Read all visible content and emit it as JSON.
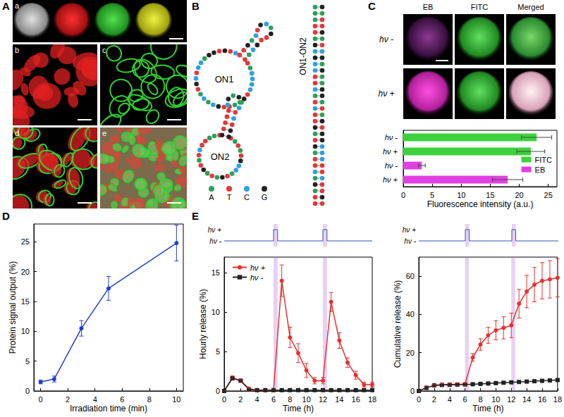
{
  "panels": {
    "A": {
      "label": "A",
      "sub_labels": [
        "a",
        "b",
        "c",
        "d",
        "e"
      ]
    },
    "B": {
      "label": "B",
      "strands": [
        "ON1",
        "ON2"
      ],
      "duplex": "ON1-ON2",
      "bases": [
        {
          "base": "A",
          "color": "#2ca05a"
        },
        {
          "base": "T",
          "color": "#e03a3a"
        },
        {
          "base": "C",
          "color": "#30a0e0"
        },
        {
          "base": "G",
          "color": "#222222"
        }
      ]
    },
    "C": {
      "label": "C",
      "columns": [
        "EB",
        "FITC",
        "Merged"
      ],
      "rows": [
        "hν -",
        "hν +"
      ]
    },
    "D": {
      "label": "D"
    },
    "E": {
      "label": "E",
      "light_levels": [
        "hν -",
        "hν +"
      ],
      "light_on": [
        [
          6,
          6.5
        ],
        [
          12,
          12.5
        ]
      ]
    }
  },
  "chart_data": [
    {
      "type": "bar",
      "orientation": "horizontal",
      "categories": [
        "hν -",
        "hν +",
        "hν -",
        "hν +"
      ],
      "series": [
        {
          "name": "FITC",
          "color": "#3dd13d",
          "values": [
            23,
            22,
            null,
            null
          ],
          "errors": [
            2.6,
            2.4,
            null,
            null
          ]
        },
        {
          "name": "EB",
          "color": "#e23fe2",
          "values": [
            null,
            null,
            3.2,
            18
          ],
          "errors": [
            null,
            null,
            0.6,
            2.6
          ]
        }
      ],
      "xlabel": "Fluorescence intensity (a.u.)",
      "xlim": [
        0,
        26.5
      ],
      "xticks": [
        0,
        5,
        10,
        15,
        20,
        25
      ],
      "legend": "lower right",
      "grid": false
    },
    {
      "type": "line",
      "x": [
        0,
        1,
        3,
        5,
        10
      ],
      "series": [
        {
          "color": "#1f3fd0",
          "marker": "circle",
          "values": [
            1.5,
            2.0,
            10.5,
            17.2,
            24.8
          ],
          "errors": [
            0.3,
            0.5,
            1.3,
            2.0,
            3.0
          ]
        }
      ],
      "xlabel": "Irradiation time (min)",
      "ylabel": "Protein signal output (%)",
      "xlim": [
        -0.5,
        10.5
      ],
      "xticks": [
        0,
        2,
        4,
        6,
        8,
        10
      ],
      "ylim": [
        0,
        28
      ],
      "yticks": [
        0,
        5,
        10,
        15,
        20,
        25
      ],
      "grid": false
    },
    {
      "type": "line",
      "x": [
        0,
        1,
        2,
        3,
        4,
        5,
        6,
        7,
        8,
        9,
        10,
        11,
        12,
        13,
        14,
        15,
        16,
        17,
        18
      ],
      "series": [
        {
          "name": "hν +",
          "color": "#e8302f",
          "marker": "circle",
          "values": [
            0,
            1.7,
            1.3,
            0.3,
            0.1,
            0.1,
            0.1,
            14.0,
            6.8,
            4.8,
            2.6,
            1.3,
            1.3,
            11.3,
            6.4,
            3.6,
            2.0,
            0.8,
            0.8
          ],
          "errors": [
            0,
            0.2,
            0.2,
            0.1,
            0.05,
            0.05,
            0.05,
            2.0,
            1.3,
            1.2,
            0.9,
            0.4,
            0.4,
            1.2,
            1.0,
            0.6,
            0.5,
            0.3,
            0.3
          ]
        },
        {
          "name": "hν -",
          "color": "#222222",
          "marker": "square",
          "values": [
            0,
            1.6,
            1.3,
            0.2,
            0.1,
            0.1,
            0.1,
            0.1,
            0.1,
            0.1,
            0.1,
            0.1,
            0.1,
            0.1,
            0.1,
            0.1,
            0.1,
            0.1,
            0.1
          ],
          "errors": [
            0,
            0.1,
            0.1,
            0.05,
            0.05,
            0.05,
            0.05,
            0.05,
            0.05,
            0.05,
            0.05,
            0.05,
            0.05,
            0.05,
            0.05,
            0.05,
            0.05,
            0.05,
            0.05
          ]
        }
      ],
      "xlabel": "Time (h)",
      "ylabel": "Hourly release (%)",
      "xlim": [
        0,
        18
      ],
      "xticks": [
        0,
        2,
        4,
        6,
        8,
        10,
        12,
        14,
        16,
        18
      ],
      "ylim": [
        0,
        17
      ],
      "yticks": [
        0,
        5,
        10,
        15
      ],
      "legend": "upper left",
      "grid": false
    },
    {
      "type": "line",
      "x": [
        0,
        1,
        2,
        3,
        4,
        5,
        6,
        7,
        8,
        9,
        10,
        11,
        12,
        13,
        14,
        15,
        16,
        17,
        18
      ],
      "series": [
        {
          "name": "hν +",
          "color": "#e8302f",
          "marker": "circle",
          "values": [
            0,
            1.7,
            3.0,
            3.3,
            3.4,
            3.5,
            3.6,
            17.5,
            24.3,
            29.1,
            31.7,
            33.0,
            34.3,
            45.6,
            52.0,
            55.6,
            57.6,
            58.4,
            59.2
          ],
          "errors": [
            0,
            0.2,
            0.5,
            0.6,
            0.6,
            0.7,
            0.7,
            2.0,
            3.0,
            4.2,
            5.0,
            5.8,
            6.4,
            7.5,
            8.5,
            9.0,
            9.5,
            9.8,
            10.0
          ]
        },
        {
          "name": "hν -",
          "color": "#222222",
          "marker": "square",
          "values": [
            0,
            1.6,
            2.9,
            3.1,
            3.2,
            3.3,
            3.4,
            3.5,
            3.7,
            3.9,
            4.1,
            4.3,
            4.5,
            4.7,
            4.9,
            5.1,
            5.3,
            5.5,
            5.7
          ],
          "errors": [
            0,
            0.2,
            0.3,
            0.3,
            0.3,
            0.3,
            0.3,
            0.4,
            0.4,
            0.4,
            0.4,
            0.5,
            0.5,
            0.5,
            0.5,
            0.5,
            0.6,
            0.6,
            0.6
          ]
        }
      ],
      "xlabel": "Time (h)",
      "ylabel": "Cumulative release (%)",
      "xlim": [
        0,
        18
      ],
      "xticks": [
        0,
        2,
        4,
        6,
        8,
        10,
        12,
        14,
        16,
        18
      ],
      "ylim": [
        0,
        70
      ],
      "yticks": [
        0,
        20,
        40,
        60
      ],
      "grid": false
    }
  ]
}
